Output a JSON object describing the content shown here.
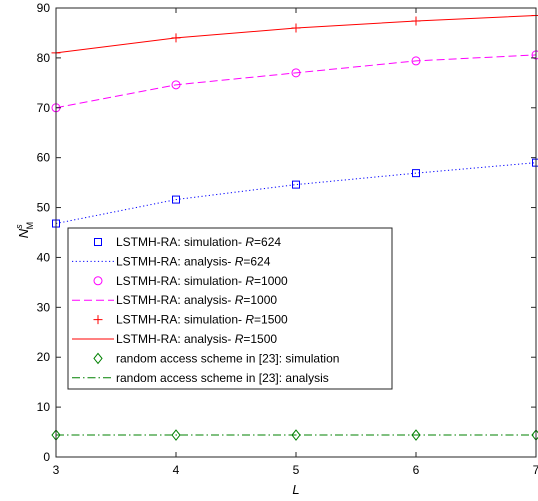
{
  "chart_data": {
    "type": "line",
    "xlabel": "L",
    "ylabel": {
      "main": "N",
      "sup": "s",
      "sub": "M"
    },
    "xlim": [
      3,
      7
    ],
    "ylim": [
      0,
      90
    ],
    "x_ticks": [
      3,
      4,
      5,
      6,
      7
    ],
    "y_ticks": [
      0,
      10,
      20,
      30,
      40,
      50,
      60,
      70,
      80,
      90
    ],
    "grid": false,
    "legend_position": "lower-left, inside the axes",
    "series": [
      {
        "name": "LSTMH-RA: simulation- R=624",
        "legend": {
          "prefix": "LSTMH-RA: simulation- ",
          "param": "R",
          "suffix": "=624"
        },
        "style": "markers",
        "marker": "square",
        "color": "#0000ff",
        "x": [
          3,
          4,
          5,
          6,
          7
        ],
        "y": [
          46.8,
          51.6,
          54.6,
          56.9,
          59.0
        ]
      },
      {
        "name": "LSTMH-RA: analysis- R=624",
        "legend": {
          "prefix": "LSTMH-RA: analysis- ",
          "param": "R",
          "suffix": "=624"
        },
        "style": "dotted",
        "color": "#0000ff",
        "x": [
          3,
          4,
          5,
          6,
          7
        ],
        "y": [
          46.8,
          51.6,
          54.6,
          56.9,
          59.0
        ]
      },
      {
        "name": "LSTMH-RA: simulation- R=1000",
        "legend": {
          "prefix": "LSTMH-RA: simulation- ",
          "param": "R",
          "suffix": "=1000"
        },
        "style": "markers",
        "marker": "circle",
        "color": "#ff00ff",
        "x": [
          3,
          4,
          5,
          6,
          7
        ],
        "y": [
          70.0,
          74.6,
          77.0,
          79.4,
          80.6
        ]
      },
      {
        "name": "LSTMH-RA: analysis- R=1000",
        "legend": {
          "prefix": "LSTMH-RA: analysis- ",
          "param": "R",
          "suffix": "=1000"
        },
        "style": "dashed",
        "color": "#ff00ff",
        "x": [
          3,
          4,
          5,
          6,
          7
        ],
        "y": [
          70.0,
          74.6,
          77.0,
          79.4,
          80.6
        ]
      },
      {
        "name": "LSTMH-RA: simulation- R=1500",
        "legend": {
          "prefix": "LSTMH-RA: simulation- ",
          "param": "R",
          "suffix": "=1500"
        },
        "style": "markers",
        "marker": "plus",
        "color": "#ff0000",
        "x": [
          3,
          4,
          5,
          6,
          7
        ],
        "y": [
          81.0,
          84.0,
          86.0,
          87.4,
          88.5
        ]
      },
      {
        "name": "LSTMH-RA: analysis- R=1500",
        "legend": {
          "prefix": "LSTMH-RA: analysis- ",
          "param": "R",
          "suffix": "=1500"
        },
        "style": "solid",
        "color": "#ff0000",
        "x": [
          3,
          4,
          5,
          6,
          7
        ],
        "y": [
          81.0,
          84.0,
          86.0,
          87.4,
          88.5
        ]
      },
      {
        "name": "random access scheme in [23]: simulation",
        "legend": {
          "prefix": "random access scheme in [23]: simulation",
          "param": "",
          "suffix": ""
        },
        "style": "markers",
        "marker": "diamond",
        "color": "#008000",
        "x": [
          3,
          4,
          5,
          6,
          7
        ],
        "y": [
          4.4,
          4.4,
          4.4,
          4.4,
          4.4
        ]
      },
      {
        "name": "random  access scheme in [23]: analysis",
        "legend": {
          "prefix": "random  access scheme in [23]: analysis",
          "param": "",
          "suffix": ""
        },
        "style": "dashdot",
        "color": "#008000",
        "x": [
          3,
          4,
          5,
          6,
          7
        ],
        "y": [
          4.4,
          4.4,
          4.4,
          4.4,
          4.4
        ]
      }
    ]
  }
}
